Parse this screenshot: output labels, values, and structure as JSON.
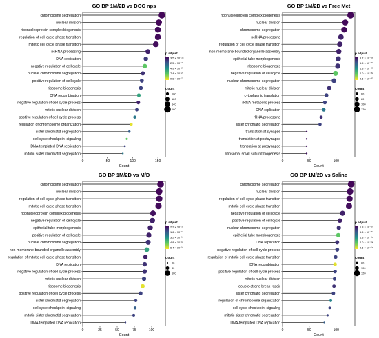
{
  "palette": {
    "low": "#fde725",
    "mid1": "#5ec962",
    "mid2": "#21918c",
    "mid3": "#3b528b",
    "high": "#440154",
    "stem": "#000000"
  },
  "chart_data": [
    {
      "type": "lollipop",
      "title": "GO BP 1M/2D vs DOC nps",
      "xlabel": "Count",
      "xlim": [
        0,
        165
      ],
      "xticks": [
        0,
        50,
        100,
        150
      ],
      "terms": [
        "chromosome segregation",
        "nuclear division",
        "ribonucleoprotein complex biogenesis",
        "regulation of cell cycle phase transition",
        "mitotic cell cycle phase transition",
        "ncRNA processing",
        "DNA replication",
        "negative regulation of cell cycle",
        "nuclear chromosome segregation",
        "positive regulation of cell cycle",
        "ribosome biogenesis",
        "DNA recombination",
        "negative regulation of cell cycle process",
        "mitotic nuclear division",
        "positive regulation of cell cycle process",
        "regulation of chromosome organization",
        "sister chromatid segregation",
        "cell cycle checkpoint signaling",
        "DNA-templated DNA replication",
        "mitotic sister chromatid segregation"
      ],
      "values": [
        158,
        152,
        150,
        150,
        146,
        130,
        126,
        124,
        120,
        118,
        116,
        112,
        111,
        108,
        104,
        97,
        93,
        88,
        84,
        80
      ],
      "color_level": [
        0.02,
        0.02,
        0.03,
        0.03,
        0.04,
        0.1,
        0.18,
        0.74,
        0.15,
        0.2,
        0.2,
        0.58,
        0.1,
        0.2,
        0.4,
        0.96,
        0.3,
        0.75,
        0.2,
        0.4
      ],
      "legend_color": {
        "title": "p.adjust",
        "labels": [
          "3.5 × 10⁻⁴⁴",
          "2.5 × 10⁻²⁷",
          "4.9 × 10⁻²⁷",
          "7.4 × 10⁻²⁷",
          "9.8 × 10⁻²⁷"
        ]
      },
      "legend_size": {
        "title": "Count",
        "labels": [
          "100",
          "120",
          "140",
          "160"
        ],
        "values": [
          100,
          120,
          140,
          160
        ]
      },
      "size_range": [
        80,
        160
      ]
    },
    {
      "type": "lollipop",
      "title": "GO BP 1M/2D vs Free Met",
      "xlabel": "Count",
      "xlim": [
        0,
        135
      ],
      "xticks": [
        0,
        50,
        100
      ],
      "terms": [
        "ribonucleoprotein complex biogenesis",
        "nuclear division",
        "chromosome segregation",
        "ncRNA processing",
        "regulation of cell cycle phase transition",
        "non-membrane-bounded organelle assembly",
        "epithelial tube morphogenesis",
        "ribosome biogenesis",
        "negative regulation of cell cycle",
        "nuclear chromosome segregation",
        "mitotic nuclear division",
        "cytoplasmic translation",
        "rRNA metabolic process",
        "DNA replication",
        "rRNA processing",
        "sister chromatid segregation",
        "translation at synapse",
        "translation at postsynapse",
        "translation at presynapse",
        "ribosomal small subunit biogenesis"
      ],
      "values": [
        127,
        117,
        115,
        109,
        107,
        105,
        104,
        103,
        99,
        96,
        87,
        82,
        79,
        77,
        72,
        70,
        45,
        45,
        45,
        45
      ],
      "color_level": [
        0.02,
        0.03,
        0.03,
        0.1,
        0.1,
        0.1,
        0.15,
        0.15,
        0.74,
        0.2,
        0.15,
        0.2,
        0.2,
        0.4,
        0.15,
        0.2,
        0.05,
        0.05,
        0.05,
        0.05
      ],
      "legend_color": {
        "title": "p.adjust",
        "labels": [
          "5.7 × 10⁻⁴³",
          "6.5 × 10⁻²⁶",
          "1.3 × 10⁻²⁵",
          "2.0 × 10⁻²⁵",
          "2.6 × 10⁻²⁵"
        ]
      },
      "legend_size": {
        "title": "Count",
        "labels": [
          "60",
          "80",
          "100",
          "120"
        ],
        "values": [
          60,
          80,
          100,
          120
        ]
      },
      "size_range": [
        45,
        127
      ]
    },
    {
      "type": "lollipop",
      "title": "GO BP 1M/2D vs M/D",
      "xlabel": "Count",
      "xlim": [
        0,
        120
      ],
      "xticks": [
        0,
        25,
        50,
        75,
        100
      ],
      "terms": [
        "chromosome segregation",
        "nuclear division",
        "regulation of cell cycle phase transition",
        "mitotic cell cycle phase transition",
        "ribonucleoprotein complex biogenesis",
        "negative regulation of cell cycle",
        "epithelial tube morphogenesis",
        "positive regulation of cell cycle",
        "nuclear chromosome segregation",
        "non-membrane-bounded organelle assembly",
        "regulation of mitotic cell cycle phase transition",
        "DNA replication",
        "negative regulation of cell cycle process",
        "mitotic nuclear division",
        "ribosome biogenesis",
        "positive regulation of cell cycle process",
        "sister chromatid segregation",
        "cell cycle checkpoint signaling",
        "mitotic sister chromatid segregation",
        "DNA-templated DNA replication"
      ],
      "values": [
        113,
        111,
        111,
        110,
        102,
        101,
        98,
        96,
        95,
        93,
        91,
        90,
        90,
        89,
        87,
        84,
        77,
        76,
        74,
        62
      ],
      "color_level": [
        0.02,
        0.02,
        0.03,
        0.03,
        0.05,
        0.1,
        0.1,
        0.1,
        0.15,
        0.58,
        0.1,
        0.15,
        0.15,
        0.2,
        0.96,
        0.2,
        0.2,
        0.3,
        0.2,
        0.2
      ],
      "legend_color": {
        "title": "p.adjust",
        "labels": [
          "2.2 × 10⁻³⁴",
          "1.6 × 10⁻¹⁶",
          "3.2 × 10⁻¹⁶",
          "4.8 × 10⁻¹⁶",
          "6.4 × 10⁻¹⁶"
        ]
      },
      "legend_size": {
        "title": "Count",
        "labels": [
          "60",
          "80",
          "100"
        ],
        "values": [
          60,
          80,
          100
        ]
      },
      "size_range": [
        62,
        113
      ]
    },
    {
      "type": "lollipop",
      "title": "GO BP 1M/2D vs Saline",
      "xlabel": "Count",
      "xlim": [
        0,
        135
      ],
      "xticks": [
        0,
        50,
        100
      ],
      "terms": [
        "chromosome segregation",
        "nuclear division",
        "regulation of cell cycle phase transition",
        "mitotic cell cycle phase transition",
        "negative regulation of cell cycle",
        "positive regulation of cell cycle",
        "nuclear chromosome segregation",
        "epithelial tube morphogenesis",
        "DNA replication",
        "negative regulation of cell cycle process",
        "regulation of mitotic cell cycle phase transition",
        "DNA recombination",
        "positive regulation of cell cycle process",
        "mitotic nuclear division",
        "double-strand break repair",
        "sister chromatid segregation",
        "regulation of chromosome organization",
        "cell cycle checkpoint signaling",
        "mitotic sister chromatid segregation",
        "DNA-templated DNA replication"
      ],
      "values": [
        128,
        126,
        125,
        124,
        112,
        107,
        105,
        104,
        102,
        102,
        99,
        98,
        98,
        97,
        96,
        95,
        90,
        88,
        84,
        78
      ],
      "color_level": [
        0.02,
        0.03,
        0.03,
        0.04,
        0.1,
        0.1,
        0.15,
        0.74,
        0.15,
        0.2,
        0.2,
        0.96,
        0.2,
        0.2,
        0.15,
        0.2,
        0.45,
        0.2,
        0.2,
        0.3
      ],
      "legend_color": {
        "title": "p.adjust",
        "labels": [
          "1.8 × 10⁻⁴⁰",
          "6.6 × 10⁻²⁵",
          "1.3 × 10⁻²⁴",
          "2.0 × 10⁻²⁴",
          "2.6 × 10⁻²⁴"
        ]
      },
      "legend_size": {
        "title": "Count",
        "labels": [
          "80",
          "100",
          "120"
        ],
        "values": [
          80,
          100,
          120
        ]
      },
      "size_range": [
        78,
        128
      ]
    }
  ]
}
